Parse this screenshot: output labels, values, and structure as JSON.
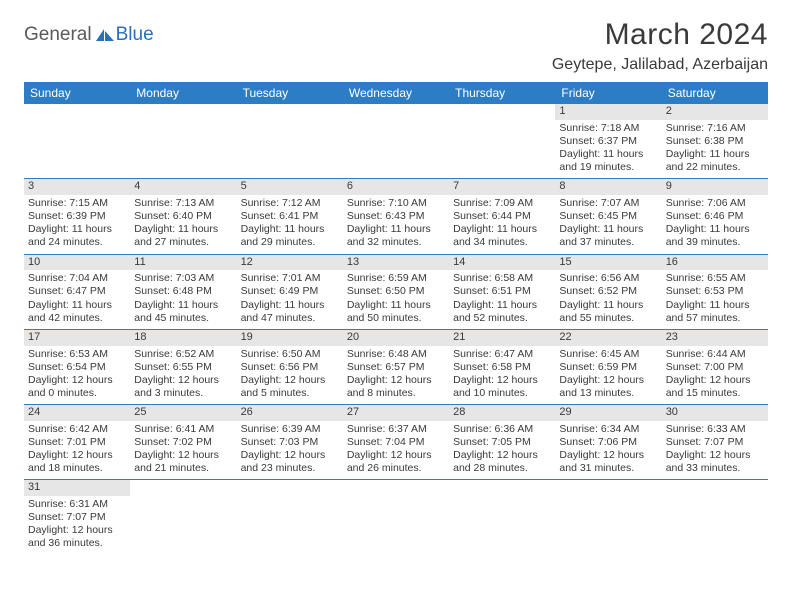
{
  "logo": {
    "part1": "General",
    "part2": "Blue"
  },
  "title": "March 2024",
  "location": "Geytepe, Jalilabad, Azerbaijan",
  "colors": {
    "header_bg": "#2d7dc4",
    "header_text": "#ffffff",
    "daynum_bg": "#e6e6e6",
    "border": "#2d7dc4",
    "logo_blue": "#2d6fb5",
    "logo_gray": "#5a5a5a"
  },
  "day_headers": [
    "Sunday",
    "Monday",
    "Tuesday",
    "Wednesday",
    "Thursday",
    "Friday",
    "Saturday"
  ],
  "weeks": [
    [
      null,
      null,
      null,
      null,
      null,
      {
        "n": "1",
        "sr": "Sunrise: 7:18 AM",
        "ss": "Sunset: 6:37 PM",
        "dl": "Daylight: 11 hours and 19 minutes."
      },
      {
        "n": "2",
        "sr": "Sunrise: 7:16 AM",
        "ss": "Sunset: 6:38 PM",
        "dl": "Daylight: 11 hours and 22 minutes."
      }
    ],
    [
      {
        "n": "3",
        "sr": "Sunrise: 7:15 AM",
        "ss": "Sunset: 6:39 PM",
        "dl": "Daylight: 11 hours and 24 minutes."
      },
      {
        "n": "4",
        "sr": "Sunrise: 7:13 AM",
        "ss": "Sunset: 6:40 PM",
        "dl": "Daylight: 11 hours and 27 minutes."
      },
      {
        "n": "5",
        "sr": "Sunrise: 7:12 AM",
        "ss": "Sunset: 6:41 PM",
        "dl": "Daylight: 11 hours and 29 minutes."
      },
      {
        "n": "6",
        "sr": "Sunrise: 7:10 AM",
        "ss": "Sunset: 6:43 PM",
        "dl": "Daylight: 11 hours and 32 minutes."
      },
      {
        "n": "7",
        "sr": "Sunrise: 7:09 AM",
        "ss": "Sunset: 6:44 PM",
        "dl": "Daylight: 11 hours and 34 minutes."
      },
      {
        "n": "8",
        "sr": "Sunrise: 7:07 AM",
        "ss": "Sunset: 6:45 PM",
        "dl": "Daylight: 11 hours and 37 minutes."
      },
      {
        "n": "9",
        "sr": "Sunrise: 7:06 AM",
        "ss": "Sunset: 6:46 PM",
        "dl": "Daylight: 11 hours and 39 minutes."
      }
    ],
    [
      {
        "n": "10",
        "sr": "Sunrise: 7:04 AM",
        "ss": "Sunset: 6:47 PM",
        "dl": "Daylight: 11 hours and 42 minutes."
      },
      {
        "n": "11",
        "sr": "Sunrise: 7:03 AM",
        "ss": "Sunset: 6:48 PM",
        "dl": "Daylight: 11 hours and 45 minutes."
      },
      {
        "n": "12",
        "sr": "Sunrise: 7:01 AM",
        "ss": "Sunset: 6:49 PM",
        "dl": "Daylight: 11 hours and 47 minutes."
      },
      {
        "n": "13",
        "sr": "Sunrise: 6:59 AM",
        "ss": "Sunset: 6:50 PM",
        "dl": "Daylight: 11 hours and 50 minutes."
      },
      {
        "n": "14",
        "sr": "Sunrise: 6:58 AM",
        "ss": "Sunset: 6:51 PM",
        "dl": "Daylight: 11 hours and 52 minutes."
      },
      {
        "n": "15",
        "sr": "Sunrise: 6:56 AM",
        "ss": "Sunset: 6:52 PM",
        "dl": "Daylight: 11 hours and 55 minutes."
      },
      {
        "n": "16",
        "sr": "Sunrise: 6:55 AM",
        "ss": "Sunset: 6:53 PM",
        "dl": "Daylight: 11 hours and 57 minutes."
      }
    ],
    [
      {
        "n": "17",
        "sr": "Sunrise: 6:53 AM",
        "ss": "Sunset: 6:54 PM",
        "dl": "Daylight: 12 hours and 0 minutes."
      },
      {
        "n": "18",
        "sr": "Sunrise: 6:52 AM",
        "ss": "Sunset: 6:55 PM",
        "dl": "Daylight: 12 hours and 3 minutes."
      },
      {
        "n": "19",
        "sr": "Sunrise: 6:50 AM",
        "ss": "Sunset: 6:56 PM",
        "dl": "Daylight: 12 hours and 5 minutes."
      },
      {
        "n": "20",
        "sr": "Sunrise: 6:48 AM",
        "ss": "Sunset: 6:57 PM",
        "dl": "Daylight: 12 hours and 8 minutes."
      },
      {
        "n": "21",
        "sr": "Sunrise: 6:47 AM",
        "ss": "Sunset: 6:58 PM",
        "dl": "Daylight: 12 hours and 10 minutes."
      },
      {
        "n": "22",
        "sr": "Sunrise: 6:45 AM",
        "ss": "Sunset: 6:59 PM",
        "dl": "Daylight: 12 hours and 13 minutes."
      },
      {
        "n": "23",
        "sr": "Sunrise: 6:44 AM",
        "ss": "Sunset: 7:00 PM",
        "dl": "Daylight: 12 hours and 15 minutes."
      }
    ],
    [
      {
        "n": "24",
        "sr": "Sunrise: 6:42 AM",
        "ss": "Sunset: 7:01 PM",
        "dl": "Daylight: 12 hours and 18 minutes."
      },
      {
        "n": "25",
        "sr": "Sunrise: 6:41 AM",
        "ss": "Sunset: 7:02 PM",
        "dl": "Daylight: 12 hours and 21 minutes."
      },
      {
        "n": "26",
        "sr": "Sunrise: 6:39 AM",
        "ss": "Sunset: 7:03 PM",
        "dl": "Daylight: 12 hours and 23 minutes."
      },
      {
        "n": "27",
        "sr": "Sunrise: 6:37 AM",
        "ss": "Sunset: 7:04 PM",
        "dl": "Daylight: 12 hours and 26 minutes."
      },
      {
        "n": "28",
        "sr": "Sunrise: 6:36 AM",
        "ss": "Sunset: 7:05 PM",
        "dl": "Daylight: 12 hours and 28 minutes."
      },
      {
        "n": "29",
        "sr": "Sunrise: 6:34 AM",
        "ss": "Sunset: 7:06 PM",
        "dl": "Daylight: 12 hours and 31 minutes."
      },
      {
        "n": "30",
        "sr": "Sunrise: 6:33 AM",
        "ss": "Sunset: 7:07 PM",
        "dl": "Daylight: 12 hours and 33 minutes."
      }
    ],
    [
      {
        "n": "31",
        "sr": "Sunrise: 6:31 AM",
        "ss": "Sunset: 7:07 PM",
        "dl": "Daylight: 12 hours and 36 minutes."
      },
      null,
      null,
      null,
      null,
      null,
      null
    ]
  ]
}
